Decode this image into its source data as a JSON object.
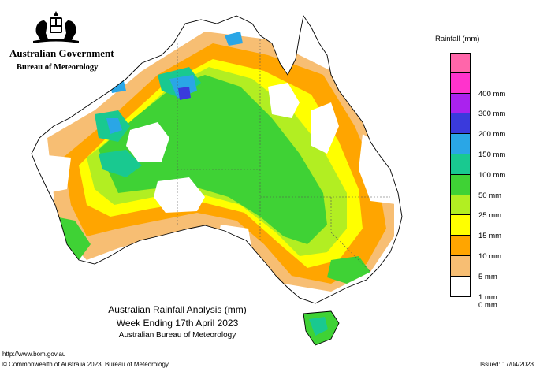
{
  "header": {
    "government": "Australian Government",
    "bureau": "Bureau of Meteorology",
    "crest_icon": "commonwealth-coat-of-arms-icon"
  },
  "legend": {
    "title": "Rainfall (mm)",
    "bins": [
      {
        "color": "#ff66aa",
        "label": ""
      },
      {
        "color": "#ff33cc",
        "label": "400 mm"
      },
      {
        "color": "#aa22ee",
        "label": "300 mm"
      },
      {
        "color": "#3a3adc",
        "label": "200 mm"
      },
      {
        "color": "#2aa6e6",
        "label": "150 mm"
      },
      {
        "color": "#19c990",
        "label": "100 mm"
      },
      {
        "color": "#3fd235",
        "label": "50 mm"
      },
      {
        "color": "#b2ee22",
        "label": "25 mm"
      },
      {
        "color": "#ffff00",
        "label": "15 mm"
      },
      {
        "color": "#ffa500",
        "label": "10 mm"
      },
      {
        "color": "#f7be73",
        "label": "5 mm"
      },
      {
        "color": "#ffffff",
        "label": "1 mm"
      }
    ],
    "bottom_label": "0 mm"
  },
  "caption": {
    "line1": "Australian Rainfall Analysis (mm)",
    "line2": "Week Ending 17th April 2023",
    "line3": "Australian Bureau of Meteorology"
  },
  "footer": {
    "url": "http://www.bom.gov.au",
    "copyright": "© Commonwealth of Australia 2023, Bureau of Meteorology",
    "issued": "Issued: 17/04/2023"
  },
  "map": {
    "region": "Australia",
    "colors": {
      "none": "#ffffff",
      "r1": "#f7be73",
      "r5": "#ffa500",
      "r10": "#ffff00",
      "r15": "#b2ee22",
      "r25": "#3fd235",
      "r50": "#19c990",
      "r100": "#2aa6e6",
      "r150": "#3a3adc"
    }
  }
}
